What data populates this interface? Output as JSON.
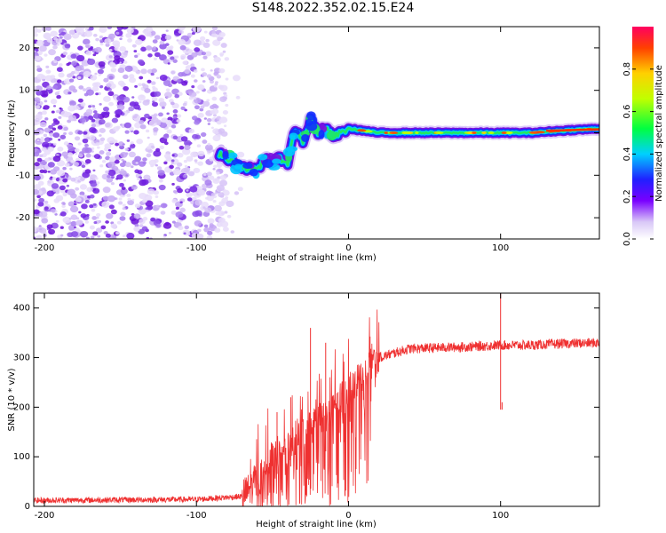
{
  "title": "S148.2022.352.02.15.E24",
  "chart_data": [
    {
      "type": "heatmap",
      "xlabel": "Height of straight line (km)",
      "ylabel": "Frequency (Hz)",
      "xlim": [
        -207,
        165
      ],
      "ylim": [
        -25,
        25
      ],
      "xticks": [
        -200,
        -100,
        0,
        100
      ],
      "yticks": [
        -20,
        -10,
        0,
        10,
        20
      ],
      "colorbar": {
        "label": "Normalized spectral amplitude",
        "range": [
          0,
          1
        ],
        "ticks": [
          "0.0",
          "0.2",
          "0.4",
          "0.6",
          "0.8"
        ]
      },
      "ridge": {
        "x": [
          -85,
          -80,
          -70,
          -60,
          -55,
          -50,
          -45,
          -40,
          -35,
          -30,
          -25,
          -20,
          -15,
          -10,
          -5,
          0,
          20,
          50,
          80,
          100,
          120,
          140,
          165
        ],
        "freq": [
          -5,
          -6,
          -8,
          -9,
          -6,
          -7,
          -6,
          -7,
          1,
          -2,
          3,
          0,
          1,
          -1,
          0,
          1,
          0,
          0,
          0,
          0,
          0,
          0.5,
          1
        ]
      },
      "noise_region_x": [
        -207,
        -80
      ]
    },
    {
      "type": "line",
      "xlabel": "Height of straight line (km)",
      "ylabel": "SNR (10 * v/v)",
      "xlim": [
        -207,
        165
      ],
      "ylim": [
        0,
        430
      ],
      "xticks": [
        -200,
        -100,
        0,
        100
      ],
      "yticks": [
        0,
        100,
        200,
        300,
        400
      ],
      "color": "#ef3030",
      "envelope": {
        "x": [
          -207,
          -100,
          -70,
          -60,
          -50,
          -40,
          -30,
          -20,
          -10,
          0,
          10,
          20,
          40,
          60,
          80,
          100,
          120,
          140,
          165
        ],
        "mean": [
          12,
          14,
          20,
          50,
          100,
          130,
          150,
          170,
          200,
          230,
          270,
          300,
          318,
          320,
          322,
          325,
          325,
          328,
          330
        ]
      },
      "spikes": [
        {
          "x": -47,
          "y": 190
        },
        {
          "x": -38,
          "y": 220
        },
        {
          "x": -25,
          "y": 360
        },
        {
          "x": -15,
          "y": 330
        },
        {
          "x": 12,
          "y": 150
        },
        {
          "x": 100,
          "y": 430
        },
        {
          "x": 101,
          "y": 210
        }
      ]
    }
  ]
}
